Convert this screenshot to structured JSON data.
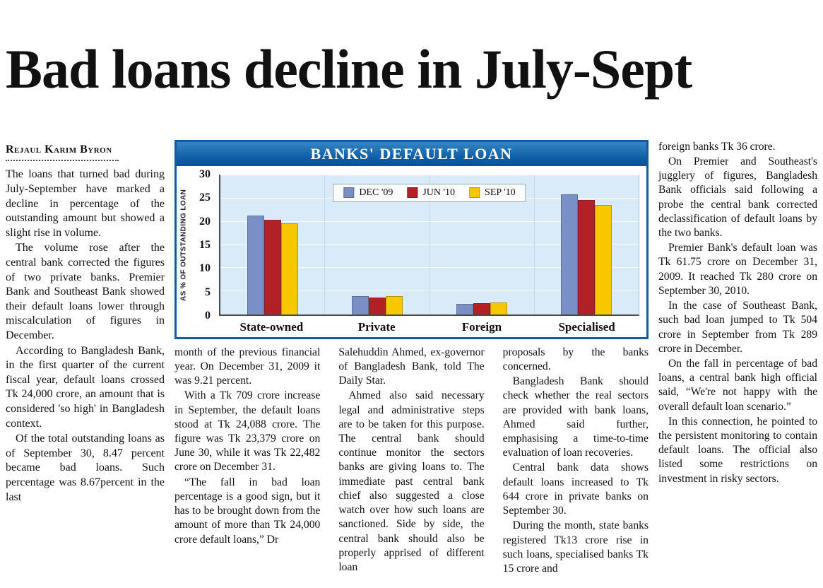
{
  "article": {
    "headline": "Bad loans decline in July-Sept",
    "byline": "Rejaul Karim Byron",
    "col1": [
      "The loans that turned bad during July-September have marked a decline in percentage of the outstanding amount but showed a slight rise in volume.",
      "The volume rose after the central bank corrected the figures of two private banks. Premier Bank and Southeast Bank showed their default loans lower through miscalculation of figures in December.",
      "According to Bangladesh Bank, in the first quarter of the current fiscal year, default loans crossed Tk 24,000 crore, an amount that is considered 'so high' in Bangladesh context.",
      "Of the total outstanding loans as of September 30, 8.47 percent became bad loans. Such percentage was 8.67percent in the last"
    ],
    "col2": [
      "month of the previous financial year. On December 31, 2009 it was 9.21 percent.",
      "With a Tk 709 crore increase in September, the default loans stood at Tk 24,088 crore. The figure was Tk 23,379 crore on June 30, while it was Tk 22,482 crore on December 31.",
      "“The fall in bad loan percentage is a good sign, but it has to be brought down from the amount of more than Tk 24,000 crore default loans,” Dr"
    ],
    "col3": [
      "Salehuddin Ahmed, ex-governor of Bangladesh Bank, told The Daily Star.",
      "Ahmed also said necessary legal and administrative steps are to be taken for this purpose. The central bank should continue monitor the sectors banks are giving loans to. The immediate past central bank chief also suggested a close watch over how such loans are sanctioned. Side by side, the central bank should also be properly apprised of different loan"
    ],
    "col4": [
      "proposals by the banks concerned.",
      "Bangladesh Bank should check whether the real sectors are provided with bank loans, Ahmed said further, emphasising a time-to-time evaluation of loan recoveries.",
      "Central bank data shows default loans increased to Tk 644 crore in private banks on September 30.",
      "During the month, state banks registered Tk13 crore rise in such loans, specialised banks Tk 15 crore and"
    ],
    "col5": [
      "foreign banks Tk 36 crore.",
      "On Premier and Southeast's jugglery of figures, Bangladesh Bank officials said following a probe the central bank corrected declassification of default loans by the two banks.",
      "Premier Bank's default loan was Tk 61.75 crore on December 31, 2009. It reached Tk 280 crore on September 30, 2010.",
      "In the case of Southeast Bank, such bad loan jumped to Tk 504 crore in September from Tk 289 crore in December.",
      "On the fall in percentage of bad loans, a central bank high official said, “We're not happy with the overall default loan scenario.”",
      "In this connection, he pointed to the persistent monitoring to contain default loans. The official also listed some restrictions on investment in risky sectors."
    ]
  },
  "chart_data": {
    "type": "bar",
    "title": "BANKS' DEFAULT LOAN",
    "ylabel": "AS % OF OUTSTANDING LOAN",
    "ylim": [
      0,
      30
    ],
    "ytick_step": 5,
    "grid": true,
    "legend_position": "top-center",
    "categories": [
      "State-owned",
      "Private",
      "Foreign",
      "Specialised"
    ],
    "series": [
      {
        "name": "DEC '09",
        "color": "#7b8fc7",
        "values": [
          21.3,
          4.0,
          2.2,
          25.8
        ]
      },
      {
        "name": "JUN '10",
        "color": "#b22225",
        "values": [
          20.4,
          3.7,
          2.4,
          24.7
        ]
      },
      {
        "name": "SEP '10",
        "color": "#f7c800",
        "values": [
          19.7,
          3.9,
          2.5,
          23.6
        ]
      }
    ],
    "colors": {
      "header_bg": "#0d5ca4",
      "border": "#15599f",
      "plot_bg": "#d9eaf8"
    }
  }
}
